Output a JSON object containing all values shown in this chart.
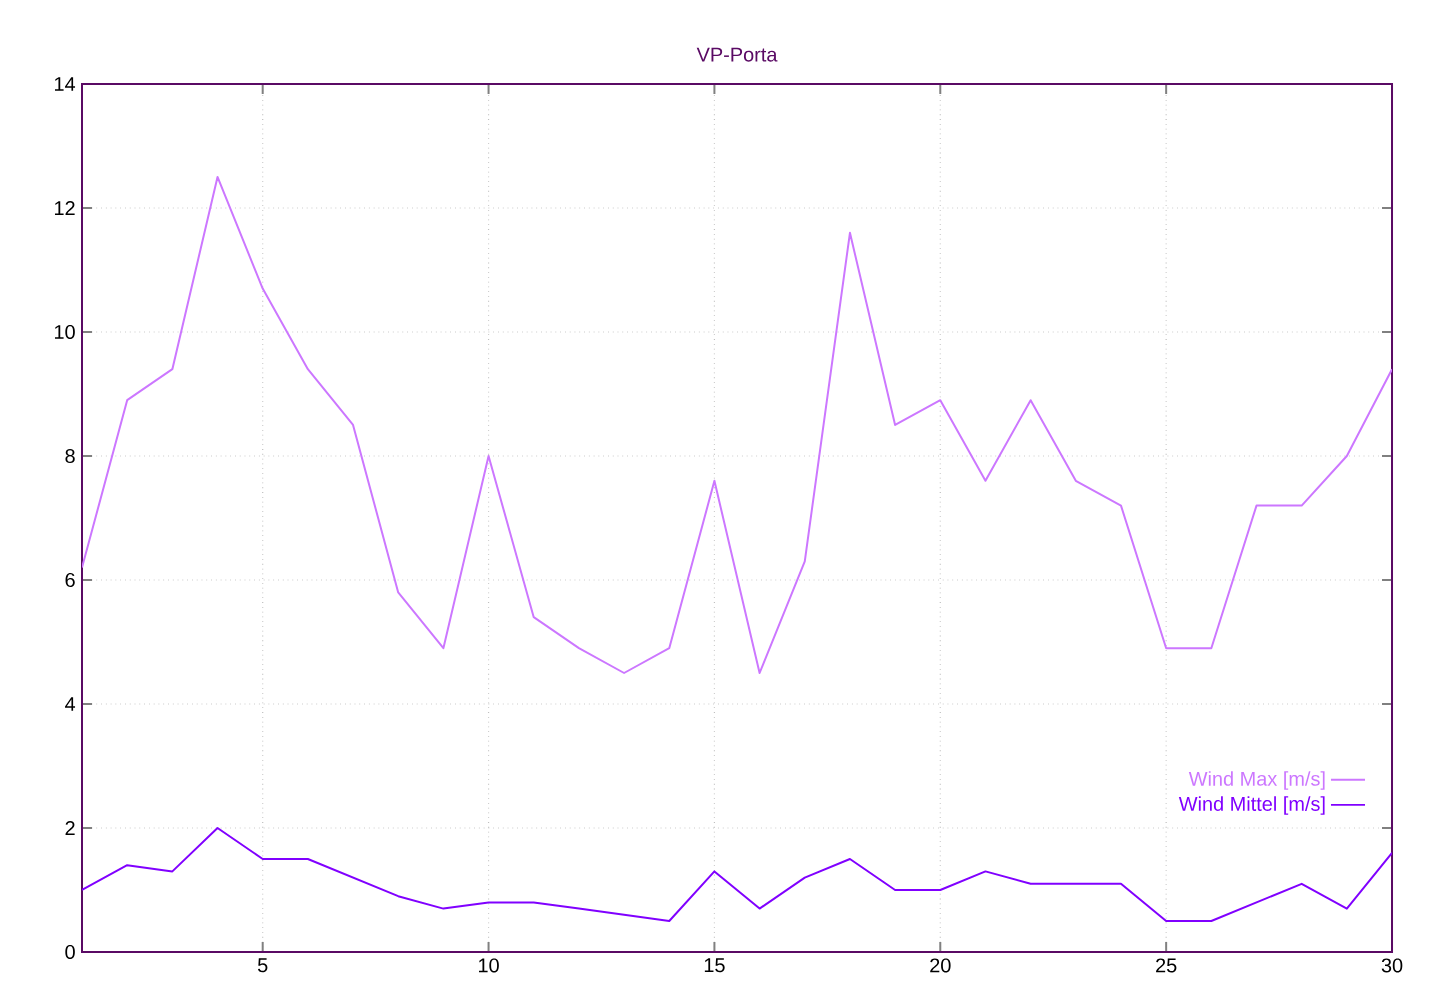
{
  "chart_data": {
    "type": "line",
    "title": "VP-Porta",
    "x": [
      1,
      2,
      3,
      4,
      5,
      6,
      7,
      8,
      9,
      10,
      11,
      12,
      13,
      14,
      15,
      16,
      17,
      18,
      19,
      20,
      21,
      22,
      23,
      24,
      25,
      26,
      27,
      28,
      29,
      30
    ],
    "series": [
      {
        "name": "Wind Max [m/s]",
        "color": "#cc77ff",
        "values": [
          6.2,
          8.9,
          9.4,
          12.5,
          10.7,
          9.4,
          8.5,
          5.8,
          4.9,
          8.0,
          5.4,
          4.9,
          4.5,
          4.9,
          7.6,
          4.5,
          6.3,
          11.6,
          8.5,
          8.9,
          7.6,
          8.9,
          7.6,
          7.2,
          4.9,
          4.9,
          7.2,
          7.2,
          8.0,
          9.4
        ]
      },
      {
        "name": "Wind Mittel [m/s]",
        "color": "#8000ff",
        "values": [
          1.0,
          1.4,
          1.3,
          2.0,
          1.5,
          1.5,
          1.2,
          0.9,
          0.7,
          0.8,
          0.8,
          0.7,
          0.6,
          0.5,
          1.3,
          0.7,
          1.2,
          1.5,
          1.0,
          1.0,
          1.3,
          1.1,
          1.1,
          1.1,
          0.5,
          0.5,
          0.8,
          1.1,
          0.7,
          1.6
        ]
      }
    ],
    "xlim": [
      1,
      30
    ],
    "xticks": [
      5,
      10,
      15,
      20,
      25,
      30
    ],
    "ylim": [
      0,
      14
    ],
    "yticks": [
      0,
      2,
      4,
      6,
      8,
      10,
      12,
      14
    ],
    "grid": true,
    "legend": "bottom right",
    "marker": "none",
    "line_style": "solid"
  }
}
